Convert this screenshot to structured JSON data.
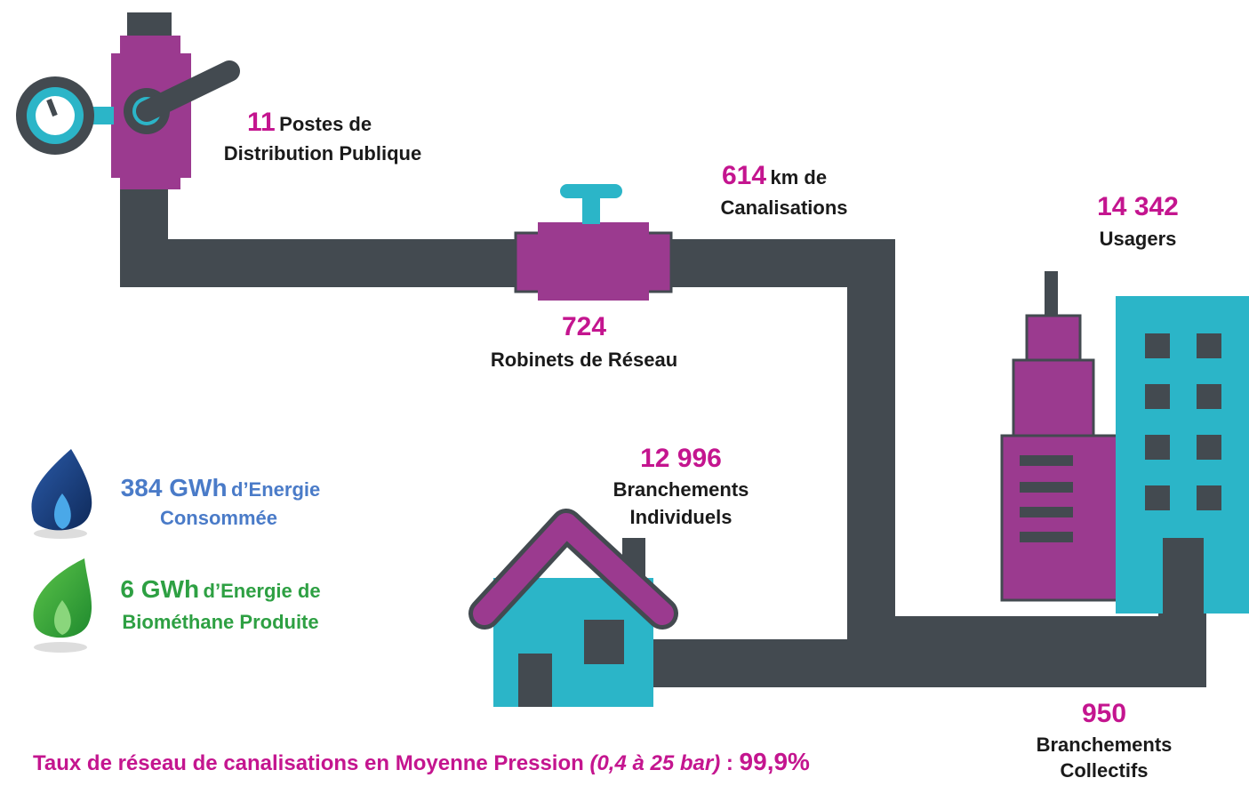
{
  "stats": [
    {
      "value": "11",
      "inline": "Postes de",
      "lines": [
        "Distribution Publique"
      ]
    },
    {
      "value": "614",
      "inline": "km de",
      "lines": [
        "Canalisations"
      ]
    },
    {
      "value": "724",
      "lines": [
        "Robinets de Réseau"
      ]
    },
    {
      "value": "14 342",
      "lines": [
        "Usagers"
      ]
    },
    {
      "value": "12 996",
      "lines": [
        "Branchements",
        "Individuels"
      ]
    },
    {
      "value": "950",
      "lines": [
        "Branchements",
        "Collectifs"
      ]
    }
  ],
  "energy": [
    {
      "value": "384 GWh",
      "inline": "d’Energie",
      "lines": [
        "Consommée"
      ]
    },
    {
      "value": "6 GWh",
      "inline": "d’Energie de",
      "lines": [
        "Biométhane Produite"
      ]
    }
  ],
  "footer": {
    "label": "Taux de réseau de canalisations en Moyenne Pression",
    "note": "(0,4 à 25 bar)",
    "separator": ":",
    "value": "99,9%"
  }
}
